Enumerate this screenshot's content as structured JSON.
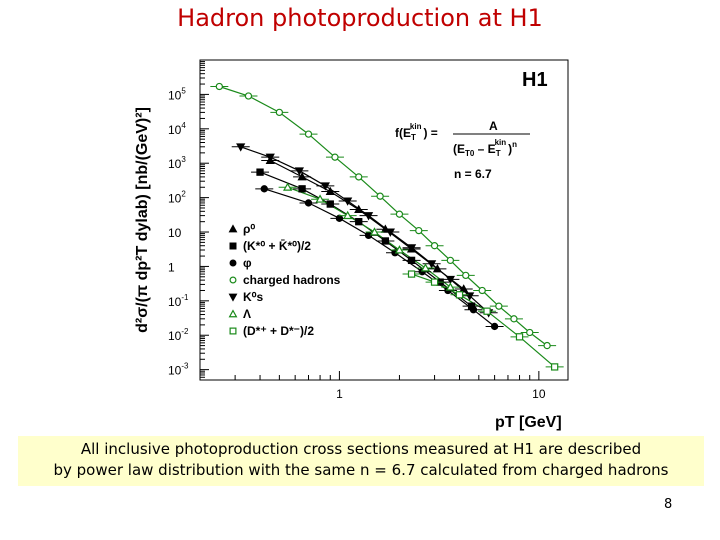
{
  "slide": {
    "title": "Hadron photoproduction at H1",
    "caption_line1": "All inclusive photoproduction cross sections measured at H1 are described",
    "caption_line2": "by power law distribution with the same n = 6.7 calculated from charged hadrons",
    "page_number": "8"
  },
  "chart_data": {
    "type": "scatter",
    "logo": "H1",
    "ylabel": "d²σ/(π dp²T dylab) [nb/(GeV)²]",
    "xlabel": "pT [GeV]",
    "xscale": "log",
    "yscale": "log",
    "xlim": [
      0.2,
      14
    ],
    "ylim": [
      0.0005,
      1000000
    ],
    "x_ticks": [
      {
        "value": 1,
        "label": "1"
      },
      {
        "value": 10,
        "label": "10"
      }
    ],
    "y_ticks": [
      {
        "value": 100000,
        "base": "10",
        "exp": "5"
      },
      {
        "value": 10000,
        "base": "10",
        "exp": "4"
      },
      {
        "value": 1000,
        "base": "10",
        "exp": "3"
      },
      {
        "value": 100,
        "base": "10",
        "exp": "2"
      },
      {
        "value": 10,
        "base": "10",
        "exp": ""
      },
      {
        "value": 1,
        "base": "1",
        "exp": ""
      },
      {
        "value": 0.1,
        "base": "10",
        "exp": "-1"
      },
      {
        "value": 0.01,
        "base": "10",
        "exp": "-2"
      },
      {
        "value": 0.001,
        "base": "10",
        "exp": "-3"
      }
    ],
    "formula": {
      "lhs": "f(E",
      "lhs_sub": "T",
      "lhs_sup": "kin",
      "lhs_end": ") =",
      "numerator": "A",
      "den_start": "(E",
      "den_sub1": "T0",
      "den_mid": " – E",
      "den_sub2": "T",
      "den_sup2": "kin",
      "den_end": ")",
      "den_exp": "n",
      "n_value": "n = 6.7"
    },
    "legend_position": "left-center",
    "series": [
      {
        "name": "ρ⁰",
        "marker": "triangle-up",
        "fill": "filled",
        "x": [
          0.45,
          0.65,
          0.9,
          1.25,
          1.7,
          2.3,
          3.1,
          4.2
        ],
        "y": [
          1200,
          400,
          150,
          45,
          12,
          3.2,
          0.85,
          0.22
        ]
      },
      {
        "name": "(K*⁰ + K̄*⁰)/2",
        "marker": "square",
        "fill": "filled",
        "x": [
          0.4,
          0.65,
          0.9,
          1.25,
          1.7,
          2.3,
          3.2,
          4.6
        ],
        "y": [
          550,
          180,
          65,
          20,
          5.5,
          1.5,
          0.35,
          0.07
        ]
      },
      {
        "name": "φ",
        "marker": "circle",
        "fill": "filled",
        "x": [
          0.42,
          0.7,
          1.0,
          1.4,
          1.9,
          2.6,
          3.5,
          4.7,
          6.0
        ],
        "y": [
          180,
          70,
          25,
          8,
          2.5,
          0.7,
          0.2,
          0.055,
          0.018
        ]
      },
      {
        "name": "charged hadrons",
        "marker": "circle",
        "fill": "open",
        "x": [
          0.25,
          0.35,
          0.5,
          0.7,
          0.95,
          1.25,
          1.6,
          2.0,
          2.5,
          3.0,
          3.6,
          4.3,
          5.2,
          6.3,
          7.5,
          9.0,
          11.0
        ],
        "y": [
          170000,
          90000,
          30000,
          7000,
          1500,
          400,
          110,
          33,
          11,
          4.0,
          1.5,
          0.55,
          0.2,
          0.07,
          0.03,
          0.012,
          0.005
        ]
      },
      {
        "name": "K⁰s",
        "marker": "triangle-down",
        "fill": "filled",
        "x": [
          0.32,
          0.45,
          0.63,
          0.85,
          1.1,
          1.4,
          1.8,
          2.3,
          2.9,
          3.6,
          4.5,
          5.6
        ],
        "y": [
          3000,
          1500,
          600,
          220,
          80,
          30,
          10,
          3.5,
          1.2,
          0.42,
          0.14,
          0.045
        ]
      },
      {
        "name": "Λ",
        "marker": "triangle-up",
        "fill": "open",
        "x": [
          0.55,
          0.8,
          1.1,
          1.5,
          2.0,
          2.7,
          3.6
        ],
        "y": [
          200,
          90,
          30,
          10,
          3.0,
          0.9,
          0.25
        ]
      },
      {
        "name": "(D*⁺ + D*⁻)/2",
        "marker": "square",
        "fill": "open",
        "x": [
          2.3,
          3.0,
          4.0,
          5.5,
          8.0,
          12.0
        ],
        "y": [
          0.6,
          0.35,
          0.15,
          0.05,
          0.009,
          0.0012
        ]
      }
    ]
  }
}
